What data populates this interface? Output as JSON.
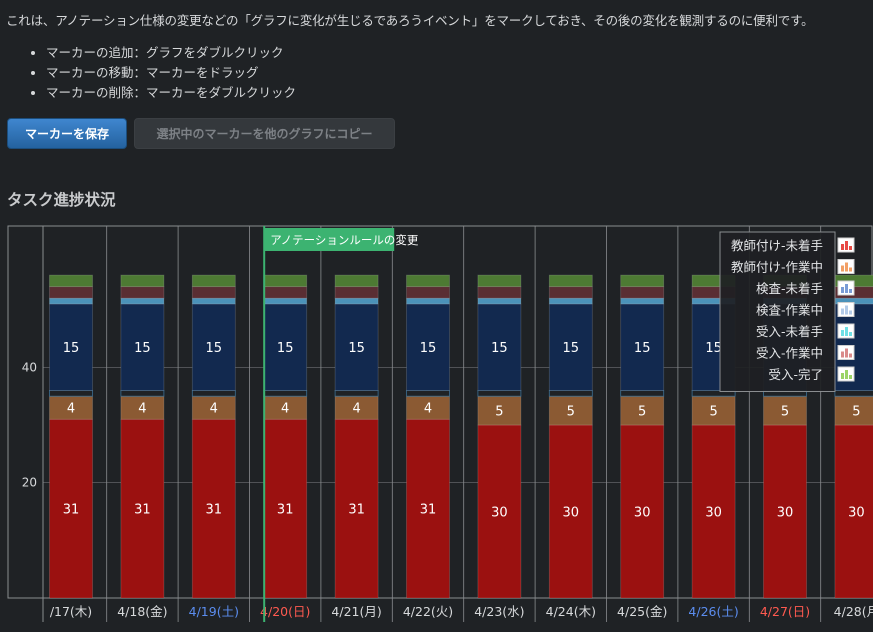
{
  "intro": {
    "text": "これは、アノテーション仕様の変更などの「グラフに変化が生じるであろうイベント」をマークしておき、その後の変化を観測するのに便利です。",
    "bullets": [
      "マーカーの追加：グラフをダブルクリック",
      "マーカーの移動：マーカーをドラッグ",
      "マーカーの削除：マーカーをダブルクリック"
    ]
  },
  "buttons": {
    "save_label": "マーカーを保存",
    "copy_label": "選択中のマーカーを他のグラフにコピー"
  },
  "section_title": "タスク進捗状況",
  "colors": {
    "background": "#1f2225",
    "save_button": "#2f75bd",
    "marker": "#3cb371",
    "weekend_blue": "#5b8def",
    "holiday_red": "#ff5a50"
  },
  "chart_data": {
    "type": "bar",
    "stacked": true,
    "categories": [
      "/17(木)",
      "4/18(金)",
      "4/19(土)",
      "4/20(日)",
      "4/21(月)",
      "4/22(火)",
      "4/23(水)",
      "4/24(木)",
      "4/25(金)",
      "4/26(土)",
      "4/27(日)",
      "4/28(月"
    ],
    "category_colors": [
      "#d7d9db",
      "#d7d9db",
      "#5b8def",
      "#ff5a50",
      "#d7d9db",
      "#d7d9db",
      "#d7d9db",
      "#d7d9db",
      "#d7d9db",
      "#5b8def",
      "#ff5a50",
      "#d7d9db"
    ],
    "series": [
      {
        "name": "受入-完了",
        "color": "#9b1110",
        "values": [
          31,
          31,
          31,
          31,
          31,
          31,
          30,
          30,
          30,
          30,
          30,
          30
        ],
        "labels": [
          "31",
          "31",
          "31",
          "31",
          "31",
          "31",
          "30",
          "30",
          "30",
          "30",
          "30",
          "30"
        ]
      },
      {
        "name": "受入-作業中",
        "color": "#8b5a33",
        "values": [
          4,
          4,
          4,
          4,
          4,
          4,
          5,
          5,
          5,
          5,
          5,
          5
        ],
        "labels": [
          "4",
          "4",
          "4",
          "4",
          "4",
          "4",
          "5",
          "5",
          "5",
          "5",
          "5",
          "5"
        ]
      },
      {
        "name": "受入-未着手",
        "color": "#1f2225",
        "values": [
          1,
          1,
          1,
          1,
          1,
          1,
          1,
          1,
          1,
          1,
          1,
          1
        ],
        "labels": []
      },
      {
        "name": "検査-作業中",
        "color": "#12294f",
        "values": [
          15,
          15,
          15,
          15,
          15,
          15,
          15,
          15,
          15,
          15,
          15,
          15
        ],
        "labels": [
          "15",
          "15",
          "15",
          "15",
          "15",
          "15",
          "15",
          "15",
          "15",
          "15",
          "",
          ""
        ]
      },
      {
        "name": "検査-未着手",
        "color": "#4b92b9",
        "values": [
          1,
          1,
          1,
          1,
          1,
          1,
          1,
          1,
          1,
          1,
          1,
          1
        ],
        "labels": []
      },
      {
        "name": "教師付け-作業中",
        "color": "#5a2e33",
        "values": [
          2,
          2,
          2,
          2,
          2,
          2,
          2,
          2,
          2,
          2,
          2,
          2
        ],
        "labels": []
      },
      {
        "name": "教師付け-未着手",
        "color": "#4d7a33",
        "values": [
          2,
          2,
          2,
          2,
          2,
          2,
          2,
          2,
          2,
          2,
          2,
          2
        ],
        "labels": []
      }
    ],
    "legend": {
      "placement": "top-right",
      "entries": [
        {
          "name": "教師付け-未着手",
          "color": "#e84a44"
        },
        {
          "name": "教師付け-作業中",
          "color": "#f2a066"
        },
        {
          "name": "検査-未着手",
          "color": "#7a9cd6"
        },
        {
          "name": "検査-作業中",
          "color": "#b3cbe8"
        },
        {
          "name": "受入-未着手",
          "color": "#6fe0e6"
        },
        {
          "name": "受入-作業中",
          "color": "#d98a8a"
        },
        {
          "name": "受入-完了",
          "color": "#9bd466"
        }
      ]
    },
    "y_ticks": [
      20,
      40
    ],
    "ylim": [
      0,
      60
    ],
    "grid": true,
    "annotation": {
      "label": "アノテーションルールの変更",
      "category": "4/20(日)"
    }
  }
}
